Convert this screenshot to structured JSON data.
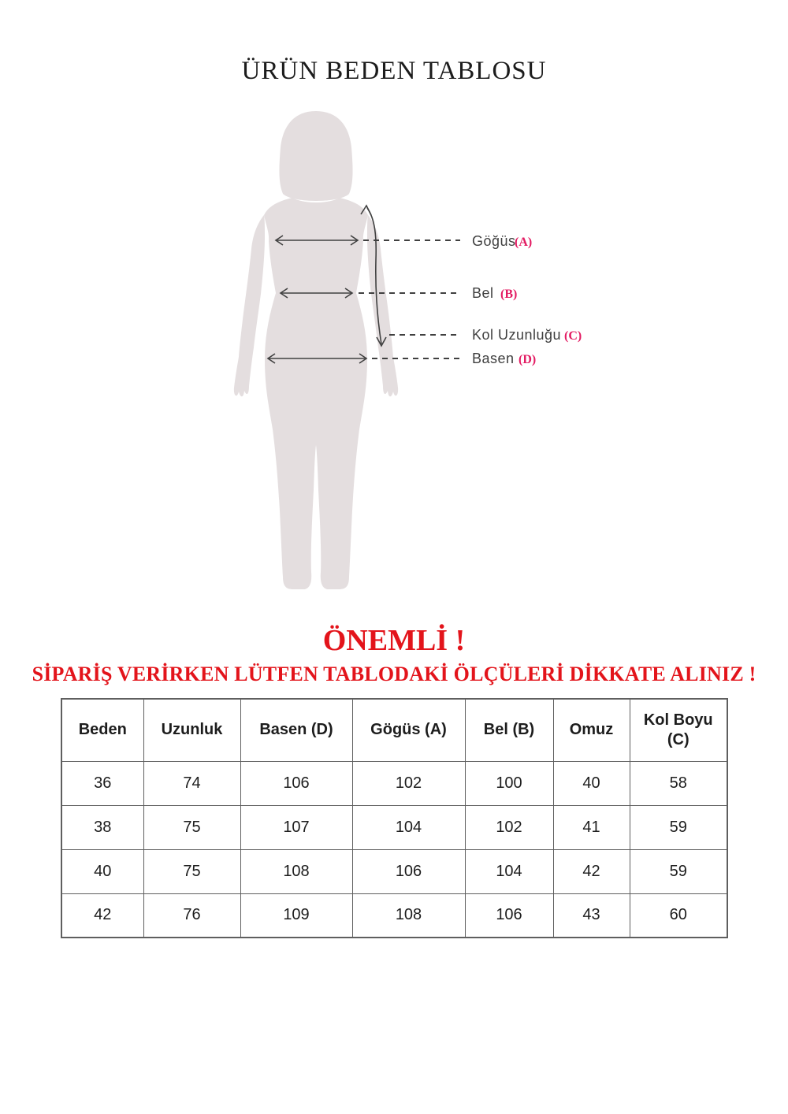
{
  "page": {
    "title": "ÜRÜN BEDEN TABLOSU"
  },
  "diagram": {
    "labels": [
      {
        "name": "Göğüs",
        "code": "(A)"
      },
      {
        "name": "Bel",
        "code": "(B)"
      },
      {
        "name": "Kol Uzunluğu",
        "code": "(C)"
      },
      {
        "name": "Basen",
        "code": "(D)"
      }
    ]
  },
  "warning": {
    "heading": "ÖNEMLİ !",
    "subheading": "SİPARİŞ VERİRKEN LÜTFEN TABLODAKİ ÖLÇÜLERİ DİKKATE ALINIZ !"
  },
  "size_table": {
    "headers": [
      "Beden",
      "Uzunluk",
      "Basen (D)",
      "Gögüs (A)",
      "Bel (B)",
      "Omuz",
      "Kol Boyu (C)"
    ],
    "rows": [
      [
        "36",
        "74",
        "106",
        "102",
        "100",
        "40",
        "58"
      ],
      [
        "38",
        "75",
        "107",
        "104",
        "102",
        "41",
        "59"
      ],
      [
        "40",
        "75",
        "108",
        "106",
        "104",
        "42",
        "59"
      ],
      [
        "42",
        "76",
        "109",
        "108",
        "106",
        "43",
        "60"
      ]
    ]
  },
  "colors": {
    "warning_red": "#e3141b",
    "label_pink": "#e31b62",
    "silhouette_fill": "#e4dedf",
    "diagram_ink": "#404040",
    "table_border": "#5f5f5f",
    "text_dark": "#1d1d1d"
  }
}
